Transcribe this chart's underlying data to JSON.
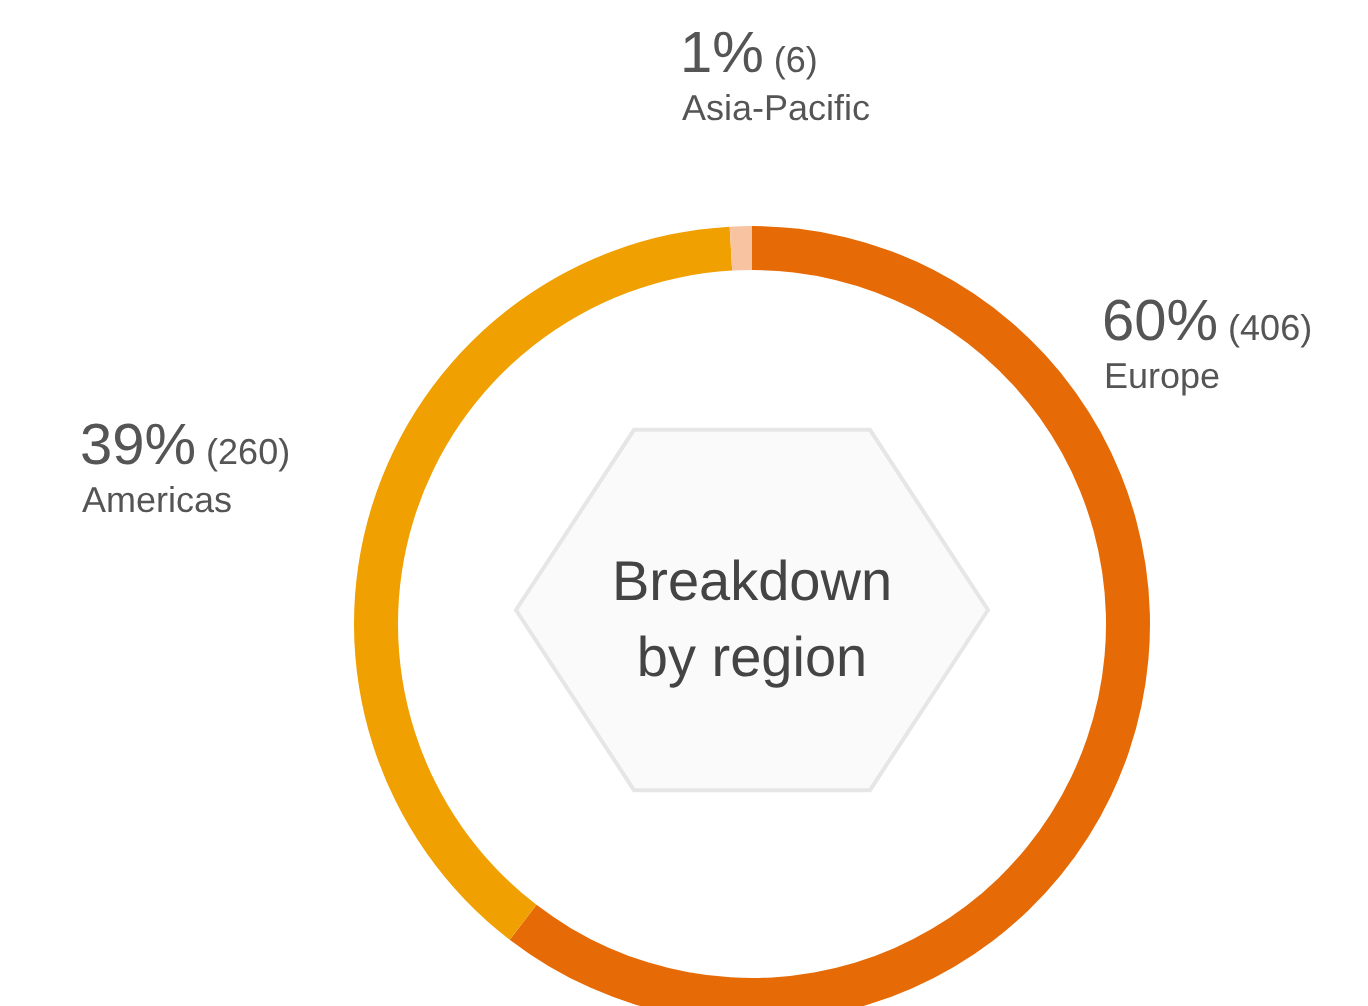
{
  "chart_data": {
    "type": "donut",
    "title": "Breakdown by region",
    "categories": [
      "Europe",
      "Americas",
      "Asia-Pacific"
    ],
    "values": [
      406,
      260,
      6
    ],
    "colors": [
      "#e66a05",
      "#f0a000",
      "#f7c3a0"
    ],
    "value_labels": [
      "60% (406)",
      "39% (260)",
      "1% (6)"
    ]
  }
}
